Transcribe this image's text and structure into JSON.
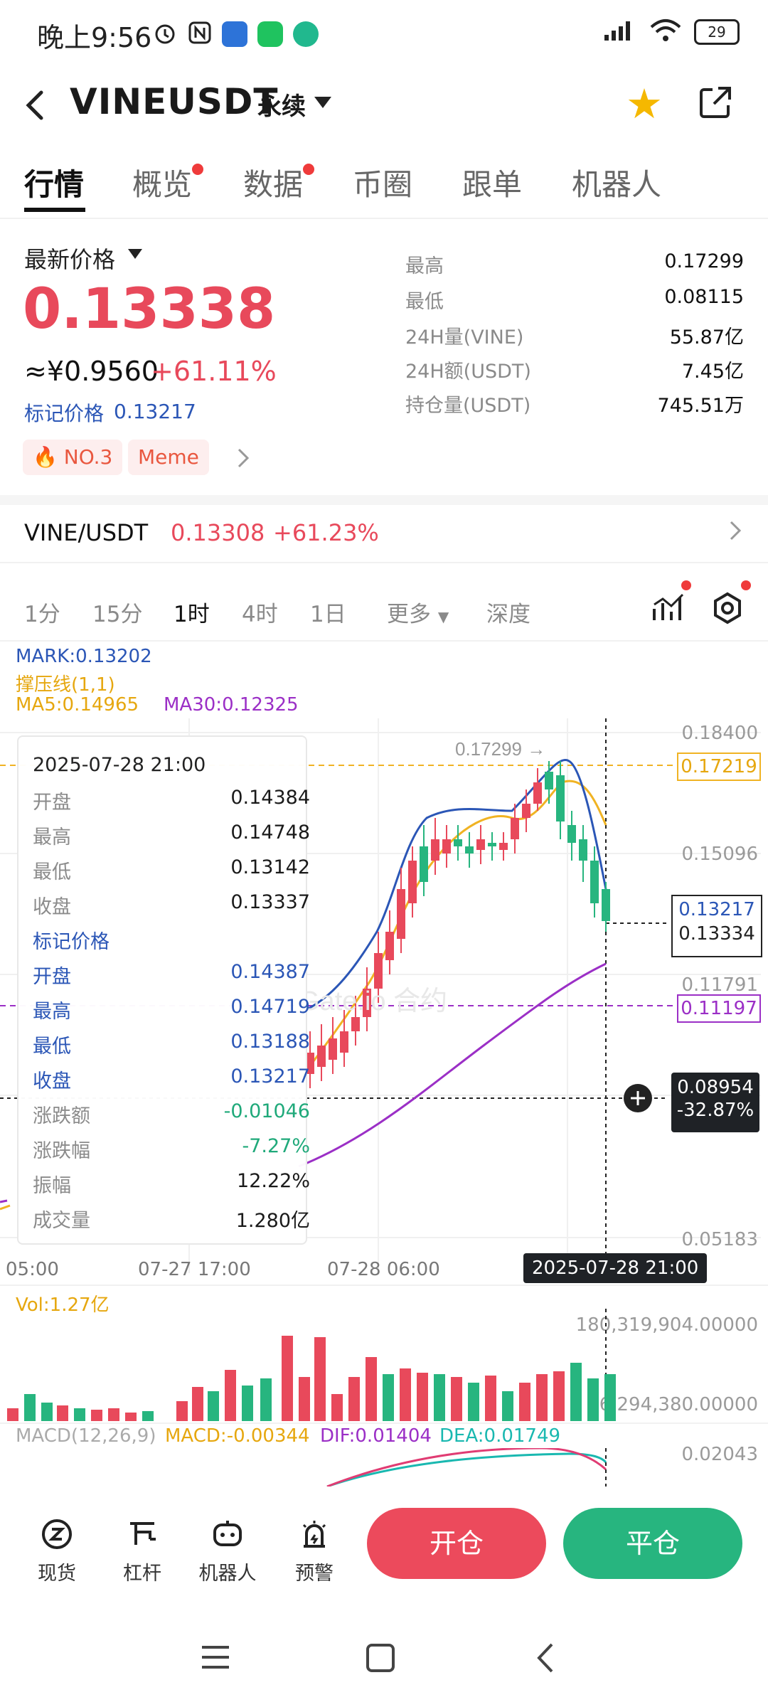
{
  "status_bar": {
    "time": "晚上9:56",
    "battery": "29"
  },
  "header": {
    "title": "VINEUSDT",
    "subtitle": "永续"
  },
  "tabs": [
    {
      "label": "行情"
    },
    {
      "label": "概览"
    },
    {
      "label": "数据"
    },
    {
      "label": "币圈"
    },
    {
      "label": "跟单"
    },
    {
      "label": "机器人"
    }
  ],
  "price": {
    "latest_label": "最新价格",
    "last": "0.13338",
    "cny": "≈¥0.9560",
    "change": "+61.11%",
    "mark_label": "标记价格",
    "mark": "0.13217",
    "rank": "NO.3",
    "tag": "Meme"
  },
  "stats": [
    {
      "label": "最高",
      "value": "0.17299"
    },
    {
      "label": "最低",
      "value": "0.08115"
    },
    {
      "label": "24H量(VINE)",
      "value": "55.87亿"
    },
    {
      "label": "24H额(USDT)",
      "value": "7.45亿"
    },
    {
      "label": "持仓量(USDT)",
      "value": "745.51万"
    }
  ],
  "spot": {
    "pair": "VINE/USDT",
    "price": "0.13308",
    "change": "+61.23%"
  },
  "intervals": [
    "1分",
    "15分",
    "1时",
    "4时",
    "1日",
    "更多",
    "深度"
  ],
  "indicators": {
    "mark": "MARK:0.13202",
    "support": "撑压线(1,1)",
    "ma5": "MA5:0.14965",
    "ma30": "MA30:0.12325"
  },
  "chart_axis": {
    "y_labels": [
      "0.18400",
      "0.15096",
      "0.11791",
      "0.05183"
    ],
    "x_labels": [
      "05:00",
      "07-27 17:00",
      "07-28 06:00"
    ],
    "cursor_time": "2025-07-28 21:00",
    "high_marker": "0.17299 →",
    "tag_resistance": "0.17219",
    "tag_mark": "0.13217",
    "tag_last": "0.13334",
    "tag_support": "0.11197",
    "cursor_price": "0.08954",
    "cursor_pct": "-32.87%",
    "watermark": "Gate.io 合约"
  },
  "tooltip": {
    "time": "2025-07-28 21:00",
    "rows": [
      {
        "k": "开盘",
        "v": "0.14384"
      },
      {
        "k": "最高",
        "v": "0.14748"
      },
      {
        "k": "最低",
        "v": "0.13142"
      },
      {
        "k": "收盘",
        "v": "0.13337"
      }
    ],
    "mark_title": "标记价格",
    "mark_rows": [
      {
        "k": "开盘",
        "v": "0.14387"
      },
      {
        "k": "最高",
        "v": "0.14719"
      },
      {
        "k": "最低",
        "v": "0.13188"
      },
      {
        "k": "收盘",
        "v": "0.13217"
      }
    ],
    "extra_rows": [
      {
        "k": "涨跌额",
        "v": "-0.01046"
      },
      {
        "k": "涨跌幅",
        "v": "-7.27%"
      },
      {
        "k": "振幅",
        "v": "12.22%"
      },
      {
        "k": "成交量",
        "v": "1.280亿"
      }
    ]
  },
  "volume": {
    "label": "Vol:1.27亿",
    "max_label": "180,319,904.00000",
    "mid_label": "26,294,380.00000"
  },
  "macd": {
    "label": "MACD(12,26,9)",
    "macd": "MACD:-0.00344",
    "dif": "DIF:0.01404",
    "dea": "DEA:0.01749",
    "axis": "0.02043"
  },
  "bottom_bar": {
    "items": [
      {
        "label": "现货",
        "icon": "spot-icon"
      },
      {
        "label": "杠杆",
        "icon": "leverage-icon"
      },
      {
        "label": "机器人",
        "icon": "robot-icon"
      },
      {
        "label": "预警",
        "icon": "alert-icon"
      }
    ],
    "open": "开仓",
    "close": "平仓"
  },
  "colors": {
    "up": "#e8495b",
    "down": "#27b57f",
    "ma5": "#f0b323",
    "ma30": "#9b2fc6",
    "mark": "#2b56b6"
  }
}
